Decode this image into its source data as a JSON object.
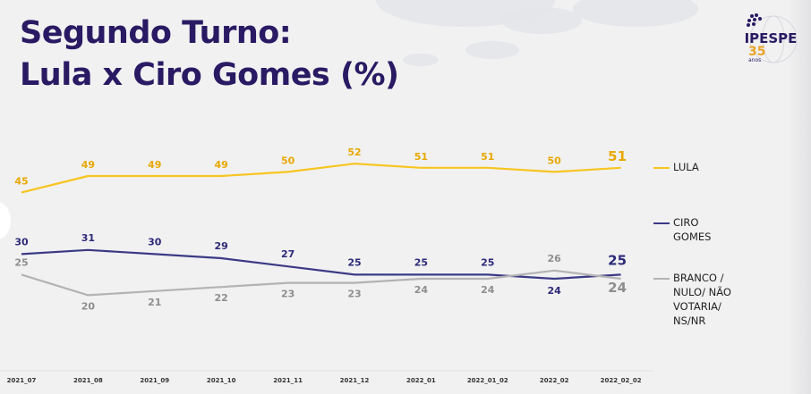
{
  "title_line1": "Segundo Turno:",
  "title_line2": "Lula x Ciro Gomes (%)",
  "logo": {
    "name": "IPESPE",
    "number": "35",
    "anos": "anos"
  },
  "chart_data": {
    "type": "line",
    "categories": [
      "2021_07",
      "2021_08",
      "2021_09",
      "2021_10",
      "2021_11",
      "2021_12",
      "2022_01",
      "2022_01_02",
      "2022_02",
      "2022_02_02"
    ],
    "ylim": [
      15,
      55
    ],
    "grid": false,
    "legend_placement": "right",
    "series": [
      {
        "name": "LULA",
        "color": "#f7c51e",
        "label_color": "#e8a800",
        "values": [
          45,
          49,
          49,
          49,
          50,
          52,
          51,
          51,
          50,
          51
        ]
      },
      {
        "name": "CIRO\nGOMES",
        "color": "#3c3a85",
        "label_color": "#2d2a78",
        "values": [
          30,
          31,
          30,
          29,
          27,
          25,
          25,
          25,
          24,
          25
        ]
      },
      {
        "name": "BRANCO /\nNULO/ NÃO\nVOTARIA/\nNS/NR",
        "color": "#b3b3b3",
        "label_color": "#8e8e8e",
        "values": [
          25,
          20,
          21,
          22,
          23,
          23,
          24,
          24,
          26,
          24
        ]
      }
    ]
  }
}
